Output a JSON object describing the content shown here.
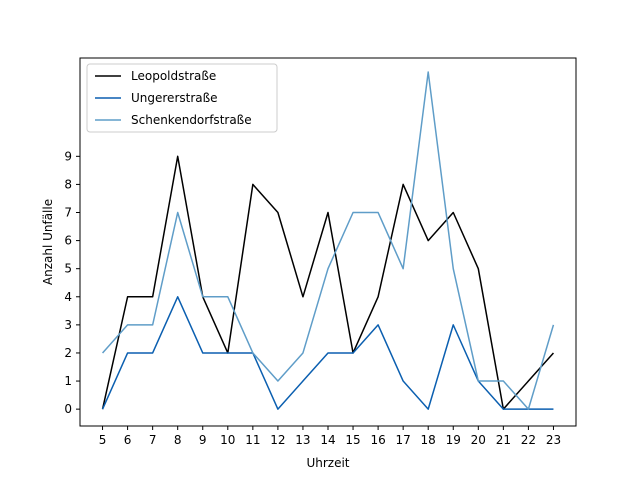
{
  "chart_data": {
    "type": "line",
    "title": "",
    "xlabel": "Uhrzeit",
    "ylabel": "Anzahl Unfälle",
    "x": [
      5,
      6,
      7,
      8,
      9,
      10,
      11,
      12,
      13,
      14,
      15,
      16,
      17,
      18,
      19,
      20,
      21,
      22,
      23
    ],
    "xlim": [
      4.1,
      23.9
    ],
    "ylim": [
      -0.6,
      12.5
    ],
    "yticks": [
      0,
      1,
      2,
      3,
      4,
      5,
      6,
      7,
      8,
      9
    ],
    "grid": false,
    "legend": "upper left",
    "series": [
      {
        "name": "Leopoldstraße",
        "color": "#000000",
        "values": [
          0,
          4,
          4,
          9,
          4,
          2,
          8,
          7,
          4,
          7,
          2,
          4,
          8,
          6,
          7,
          5,
          0,
          1,
          2
        ]
      },
      {
        "name": "Ungererstraße",
        "color": "#0b5fb0",
        "values": [
          0,
          2,
          2,
          4,
          2,
          2,
          2,
          0,
          1,
          2,
          2,
          3,
          1,
          0,
          3,
          1,
          0,
          0,
          0
        ]
      },
      {
        "name": "Schenkendorfstraße",
        "color": "#5f9dc8",
        "values": [
          2,
          3,
          3,
          7,
          4,
          4,
          2,
          1,
          2,
          5,
          7,
          7,
          5,
          12,
          5,
          1,
          1,
          0,
          3
        ]
      }
    ]
  }
}
